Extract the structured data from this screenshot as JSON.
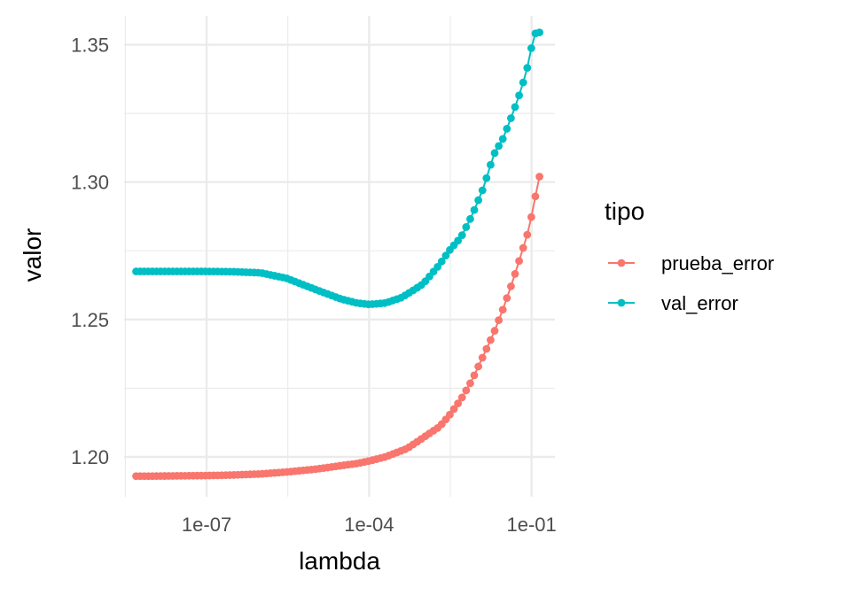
{
  "chart_data": {
    "type": "line",
    "xlabel": "lambda",
    "ylabel": "valor",
    "x_scale": "log10",
    "xlim": [
      3e-09,
      0.27
    ],
    "ylim": [
      1.1855,
      1.3605
    ],
    "x_ticks": [
      {
        "value": 1e-07,
        "label": "1e-07"
      },
      {
        "value": 0.0001,
        "label": "1e-04"
      },
      {
        "value": 0.1,
        "label": "1e-01"
      }
    ],
    "y_ticks": [
      {
        "value": 1.2,
        "label": "1.20"
      },
      {
        "value": 1.25,
        "label": "1.25"
      },
      {
        "value": 1.3,
        "label": "1.30"
      },
      {
        "value": 1.35,
        "label": "1.35"
      }
    ],
    "grid": true,
    "legend": {
      "title": "tipo",
      "position": "right"
    },
    "series": [
      {
        "name": "prueba_error",
        "color": "#F8766D",
        "x": [
          5e-09,
          1e-08,
          3e-08,
          1e-07,
          3e-07,
          1e-06,
          3e-06,
          1e-05,
          3e-05,
          6e-05,
          0.0001,
          0.0002,
          0.0005,
          0.001,
          0.002,
          0.003,
          0.005,
          0.008,
          0.013,
          0.02,
          0.03,
          0.045,
          0.065,
          0.09,
          0.11,
          0.14
        ],
        "values": [
          1.193,
          1.193,
          1.1931,
          1.1932,
          1.1934,
          1.1938,
          1.1945,
          1.1955,
          1.1968,
          1.1976,
          1.1985,
          1.2,
          1.203,
          1.207,
          1.211,
          1.215,
          1.221,
          1.228,
          1.237,
          1.245,
          1.254,
          1.264,
          1.274,
          1.283,
          1.292,
          1.302
        ]
      },
      {
        "name": "val_error",
        "color": "#00BFC4",
        "x": [
          5e-09,
          1e-08,
          3e-08,
          1e-07,
          3e-07,
          1e-06,
          3e-06,
          1e-05,
          3e-05,
          6e-05,
          0.0001,
          0.0002,
          0.0004,
          0.0007,
          0.001,
          0.002,
          0.003,
          0.005,
          0.008,
          0.013,
          0.02,
          0.03,
          0.045,
          0.065,
          0.09,
          0.11,
          0.14
        ],
        "values": [
          1.2675,
          1.2675,
          1.2675,
          1.2675,
          1.2674,
          1.267,
          1.265,
          1.261,
          1.2575,
          1.256,
          1.2555,
          1.256,
          1.258,
          1.261,
          1.263,
          1.27,
          1.275,
          1.28,
          1.288,
          1.298,
          1.31,
          1.316,
          1.325,
          1.334,
          1.344,
          1.354,
          1.3545
        ]
      }
    ]
  }
}
